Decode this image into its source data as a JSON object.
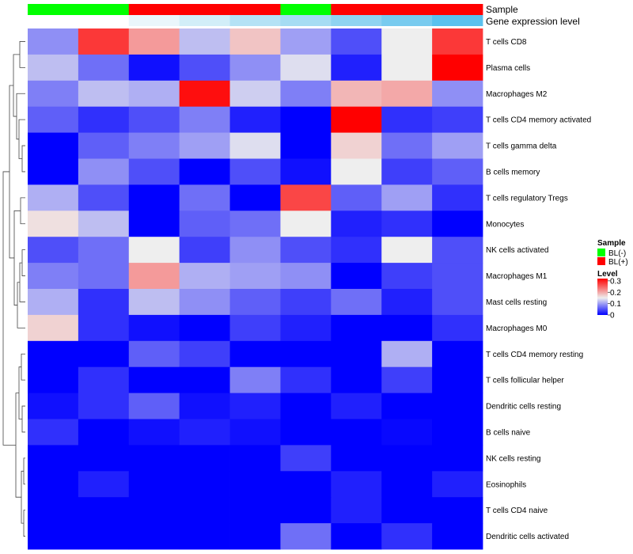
{
  "chart_data": {
    "type": "heatmap",
    "row_labels": [
      "T cells CD8",
      "Plasma cells",
      "Macrophages M2",
      "T cells CD4 memory activated",
      "T cells gamma delta",
      "B cells memory",
      "T cells regulatory  Tregs",
      "Monocytes",
      "NK cells activated",
      "Macrophages M1",
      "Mast cells resting",
      "Macrophages M0",
      "T cells CD4 memory resting",
      "T cells follicular helper",
      "Dendritic cells resting",
      "B cells naive",
      "NK cells resting",
      "Eosinophils",
      "T cells CD4 naive",
      "Dendritic cells activated"
    ],
    "values": [
      [
        0.09,
        0.28,
        0.21,
        0.12,
        0.18,
        0.1,
        0.05,
        0.15,
        0.28
      ],
      [
        0.12,
        0.07,
        0.01,
        0.05,
        0.09,
        0.14,
        0.02,
        0.15,
        0.32
      ],
      [
        0.08,
        0.12,
        0.11,
        0.31,
        0.13,
        0.08,
        0.19,
        0.2,
        0.09
      ],
      [
        0.06,
        0.03,
        0.05,
        0.08,
        0.02,
        0.0,
        0.32,
        0.03,
        0.04
      ],
      [
        0.0,
        0.06,
        0.08,
        0.1,
        0.14,
        0.0,
        0.17,
        0.07,
        0.1
      ],
      [
        0.0,
        0.09,
        0.05,
        0.0,
        0.05,
        0.01,
        0.15,
        0.04,
        0.06
      ],
      [
        0.11,
        0.05,
        0.0,
        0.07,
        0.0,
        0.27,
        0.06,
        0.1,
        0.03
      ],
      [
        0.16,
        0.12,
        0.0,
        0.06,
        0.07,
        0.15,
        0.02,
        0.03,
        0.0
      ],
      [
        0.05,
        0.07,
        0.15,
        0.04,
        0.09,
        0.05,
        0.03,
        0.15,
        0.05
      ],
      [
        0.08,
        0.07,
        0.21,
        0.11,
        0.1,
        0.09,
        0.0,
        0.04,
        0.05
      ],
      [
        0.11,
        0.03,
        0.12,
        0.09,
        0.06,
        0.04,
        0.07,
        0.02,
        0.05
      ],
      [
        0.17,
        0.03,
        0.01,
        0.0,
        0.04,
        0.02,
        0.0,
        0.0,
        0.03
      ],
      [
        0.0,
        0.0,
        0.06,
        0.04,
        0.0,
        0.0,
        0.0,
        0.11,
        0.0
      ],
      [
        0.0,
        0.03,
        0.0,
        0.0,
        0.08,
        0.03,
        0.0,
        0.04,
        0.0
      ],
      [
        0.01,
        0.03,
        0.06,
        0.01,
        0.02,
        0.0,
        0.02,
        0.0,
        0.0
      ],
      [
        0.03,
        0.0,
        0.01,
        0.02,
        0.01,
        0.0,
        0.0,
        0.005,
        0.0
      ],
      [
        0.0,
        0.0,
        0.0,
        0.0,
        0.0,
        0.04,
        0.0,
        0.0,
        0.0
      ],
      [
        0.0,
        0.02,
        0.0,
        0.0,
        0.0,
        0.0,
        0.02,
        0.0,
        0.02
      ],
      [
        0.0,
        0.0,
        0.0,
        0.0,
        0.0,
        0.0,
        0.02,
        0.0,
        0.0
      ],
      [
        0.0,
        0.0,
        0.0,
        0.0,
        0.0,
        0.07,
        0.0,
        0.03,
        0.0
      ]
    ],
    "column_annotations": {
      "sample_label": "Sample",
      "sample": [
        "BL(-)",
        "BL(-)",
        "BL(+)",
        "BL(+)",
        "BL(+)",
        "BL(-)",
        "BL(+)",
        "BL(+)",
        "BL(+)"
      ],
      "expression_label": "Gene expression level",
      "expression_colors": [
        "#ffffff",
        "#ffffff",
        "#eaf6fb",
        "#d2eef8",
        "#b4e2f5",
        "#a6dcf3",
        "#8fd3f1",
        "#78cbef",
        "#5ac1ee"
      ]
    },
    "color_scale": {
      "colors": [
        "#0000ff",
        "#eeeeee",
        "#ff0000"
      ],
      "stops": [
        0,
        0.15,
        0.32
      ],
      "range": [
        0,
        0.32
      ]
    },
    "legend": {
      "placement": "right",
      "sample_title": "Sample",
      "sample_entries": [
        {
          "label": "BL(-)",
          "color": "#00ff00"
        },
        {
          "label": "BL(+)",
          "color": "#ff0000"
        }
      ],
      "level_title": "Level",
      "level_ticks": [
        {
          "value": 0.3,
          "label": "0.3"
        },
        {
          "value": 0.2,
          "label": "0.2"
        },
        {
          "value": 0.1,
          "label": "0.1"
        },
        {
          "value": 0,
          "label": "0"
        }
      ]
    },
    "sample_colors": {
      "BL(-)": "#00ff00",
      "BL(+)": "#ff0000"
    },
    "row_dendrogram": true
  }
}
